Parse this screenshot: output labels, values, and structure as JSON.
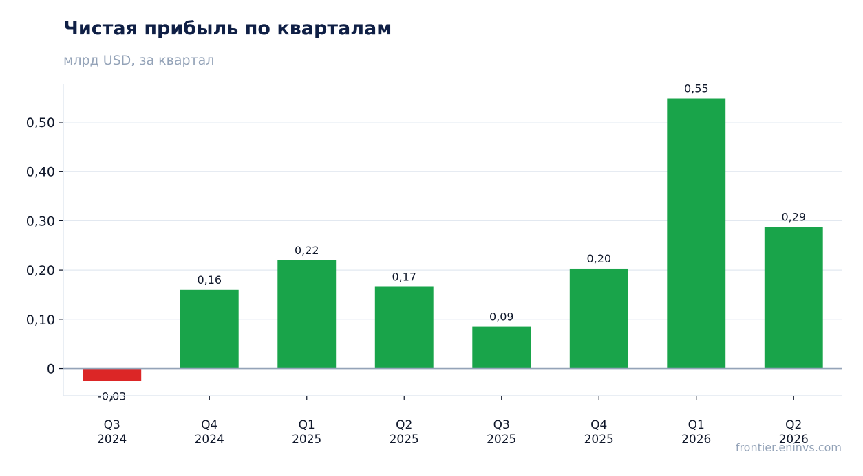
{
  "header": {
    "title": "Чистая прибыль по кварталам",
    "subtitle": "млрд USD, за квартал"
  },
  "footer": {
    "source": "frontier.eninvs.com"
  },
  "colors": {
    "positive": "#19a44a",
    "negative": "#dc2626",
    "grid": "#e2e8f0",
    "axis": "#94a3b8",
    "text": "#0f172a"
  },
  "chart_data": {
    "type": "bar",
    "categories": [
      [
        "Q3",
        "2024"
      ],
      [
        "Q4",
        "2024"
      ],
      [
        "Q1",
        "2025"
      ],
      [
        "Q2",
        "2025"
      ],
      [
        "Q3",
        "2025"
      ],
      [
        "Q4",
        "2025"
      ],
      [
        "Q1",
        "2026"
      ],
      [
        "Q2",
        "2026"
      ]
    ],
    "values": [
      -0.025,
      0.16,
      0.22,
      0.166,
      0.085,
      0.203,
      0.548,
      0.287
    ],
    "value_labels": [
      "-0,03",
      "0,16",
      "0,22",
      "0,17",
      "0,09",
      "0,20",
      "0,55",
      "0,29"
    ],
    "yticks": [
      0,
      0.1,
      0.2,
      0.3,
      0.4,
      0.5
    ],
    "ytick_labels": [
      "0",
      "0,10",
      "0,20",
      "0,30",
      "0,40",
      "0,50"
    ],
    "ylim": [
      -0.055,
      0.578
    ],
    "grid": true,
    "legend": "none"
  }
}
